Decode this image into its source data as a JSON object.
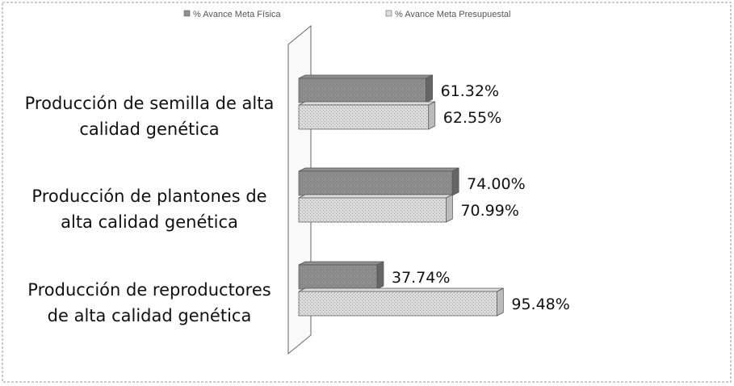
{
  "chart_data": {
    "type": "bar",
    "orientation": "horizontal",
    "categories": [
      "Producción de semilla de alta\ncalidad genética",
      "Producción de plantones de\nalta calidad genética",
      "Producción de reproductores\nde alta calidad genética"
    ],
    "series": [
      {
        "name": "% Avance Meta Física",
        "color": "#8f8f8f",
        "values": [
          61.32,
          74.0,
          37.74
        ],
        "value_labels": [
          "61.32%",
          "74.00%",
          "37.74%"
        ]
      },
      {
        "name": "% Avance Meta Presupuestal",
        "color": "#dcdcdc",
        "values": [
          62.55,
          70.99,
          95.48
        ],
        "value_labels": [
          "62.55%",
          "70.99%",
          "95.48%"
        ]
      }
    ],
    "legend": "top"
  }
}
